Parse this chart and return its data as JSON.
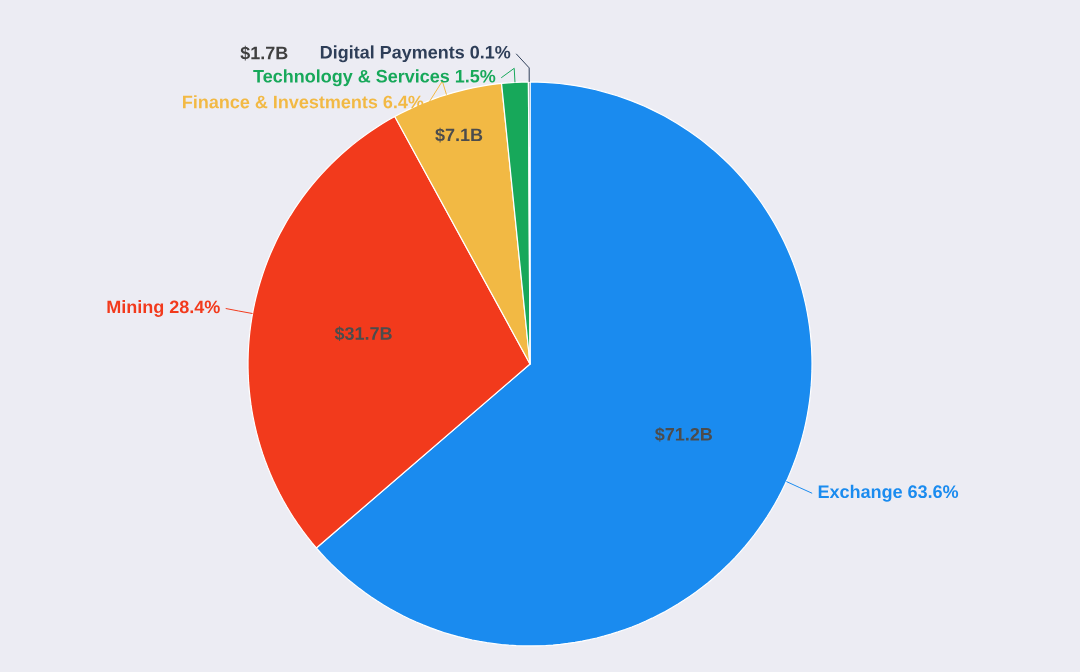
{
  "chart_data": {
    "type": "pie",
    "categories": [
      "Exchange 63.6%",
      "Mining 28.4%",
      "Finance & Investments 6.4%",
      "Technology & Services 1.5%",
      "Digital Payments 0.1%"
    ],
    "values": [
      71.2,
      31.7,
      7.1,
      1.7,
      0.1
    ],
    "value_labels": [
      "$71.2B",
      "$31.7B",
      "$7.1B",
      "$1.7B",
      null
    ],
    "colors": [
      "#1a8bef",
      "#f23a1c",
      "#f2b944",
      "#17a85a",
      "#2e3e58"
    ]
  }
}
